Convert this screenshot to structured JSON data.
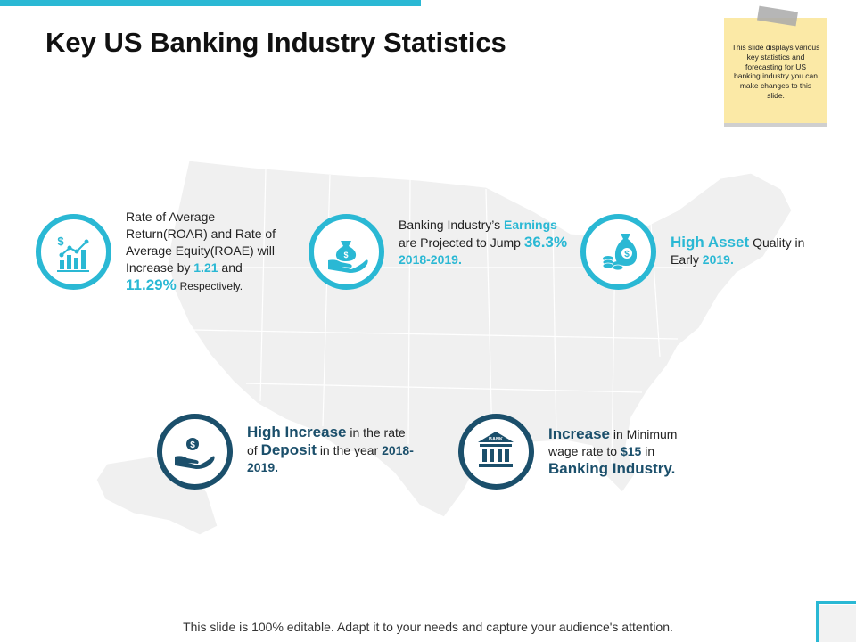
{
  "title": "Key US Banking Industry Statistics",
  "sticky_note": "This slide displays various key statistics and forecasting for US banking industry you can make changes to this slide.",
  "colors": {
    "accent_light": "#2ab8d4",
    "accent_dark": "#1b4f6b",
    "note": "#fbe9a6",
    "map": "#f0f0f0"
  },
  "stats": {
    "roar": {
      "icon": "growth-chart-icon",
      "p1": "Rate of Average Return(ROAR) and Rate of Average Equity(ROAE) will Increase by",
      "v1": "1.21",
      "p2": "and",
      "v2": "11.29%",
      "p3": "Respectively."
    },
    "earnings": {
      "icon": "money-bag-hand-icon",
      "p1": "Banking Industry’s",
      "h1": "Earnings",
      "p2": "are Projected to Jump",
      "v1": "36.3%",
      "v2": "2018-2019."
    },
    "asset": {
      "icon": "money-bag-coins-icon",
      "h1": "High Asset",
      "p1": "Quality in Early",
      "v1": "2019."
    },
    "deposit": {
      "icon": "coin-hand-icon",
      "h1": "High Increase",
      "p1": "in the rate of",
      "h2": "Deposit",
      "p2": "in the year",
      "v1": "2018-2019."
    },
    "wage": {
      "icon": "bank-building-icon",
      "icon_text": "BANK",
      "h1": "Increase",
      "p1": "in Minimum wage rate to",
      "v1": "$15",
      "p2": "in",
      "h2": "Banking Industry."
    }
  },
  "footer": "This slide is 100% editable. Adapt it to your needs and capture your audience's attention."
}
